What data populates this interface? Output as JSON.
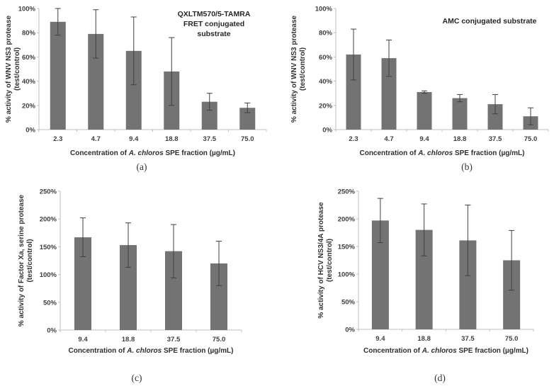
{
  "figure": {
    "background": "#ffffff",
    "panel_labels": [
      "(a)",
      "(b)",
      "(c)",
      "(d)"
    ]
  },
  "colors": {
    "bar": "#737373",
    "error_bar": "#404040",
    "axis_line": "#bfbfbf",
    "tick_text": "#3f3f3f"
  },
  "chart_data": [
    {
      "id": "a",
      "type": "bar",
      "panel_label": "(a)",
      "annotation_lines": [
        "QXLTM570/5-TAMRA",
        "FRET conjugated",
        "substrate"
      ],
      "ylabel": "% activity of WNV NS3 protease (test/control)",
      "ylabel_lines": [
        "% activity of WNV NS3 protease",
        "(test/control)"
      ],
      "xlabel": "Concentration of A. chloros SPE fraction (µg/mL)",
      "xlabel_parts": {
        "prefix": "Concentration of ",
        "italic": "A. chloros",
        "suffix": " SPE fraction (µg/mL)"
      },
      "categories": [
        "2.3",
        "4.7",
        "9.4",
        "18.8",
        "37.5",
        "75.0"
      ],
      "values": [
        89,
        79,
        65,
        48,
        23,
        18
      ],
      "errors": [
        11,
        20,
        28,
        28,
        7,
        4
      ],
      "ylim": [
        0,
        100
      ],
      "ytick_step": 20,
      "ytick_suffix": "%",
      "grid": false
    },
    {
      "id": "b",
      "type": "bar",
      "panel_label": "(b)",
      "annotation_lines": [
        "AMC conjugated substrate"
      ],
      "ylabel": "% activity of WNV NS3 protease (test/control)",
      "ylabel_lines": [
        "% activity of WNV NS3 protease",
        "(test/control)"
      ],
      "xlabel": "Concentration of A. chloros SPE fraction (µg/mL)",
      "xlabel_parts": {
        "prefix": "Concentration of ",
        "italic": "A. chloros",
        "suffix": " SPE fraction (µg/mL)"
      },
      "categories": [
        "2.3",
        "4.7",
        "9.4",
        "18.8",
        "37.5",
        "75.0"
      ],
      "values": [
        62,
        59,
        31,
        26,
        21,
        11
      ],
      "errors": [
        21,
        15,
        1,
        3,
        8,
        7
      ],
      "ylim": [
        0,
        100
      ],
      "ytick_step": 20,
      "ytick_suffix": "%",
      "grid": false
    },
    {
      "id": "c",
      "type": "bar",
      "panel_label": "(c)",
      "annotation_lines": [],
      "ylabel": "% activity of Factor Xa, serine protease (test/control)",
      "ylabel_lines": [
        "% activity of Factor Xa, serine protease",
        "(test/control)"
      ],
      "xlabel": "Concentration of A. chloros SPE fraction (µg/mL)",
      "xlabel_parts": {
        "prefix": "Concentration of ",
        "italic": "A. chloros",
        "suffix": " SPE fraction (µg/mL)"
      },
      "categories": [
        "9.4",
        "18.8",
        "37.5",
        "75.0"
      ],
      "values": [
        167,
        153,
        142,
        120
      ],
      "errors": [
        35,
        40,
        48,
        40
      ],
      "ylim": [
        0,
        250
      ],
      "ytick_step": 50,
      "ytick_suffix": "%",
      "grid": false
    },
    {
      "id": "d",
      "type": "bar",
      "panel_label": "(d)",
      "annotation_lines": [],
      "ylabel": "% activity of HCV NS3/4A protease (test/control)",
      "ylabel_lines": [
        "% activity of HCV NS3/4A protease",
        "(test/control)"
      ],
      "xlabel": "Concentration of A. chloros SPE fraction (µg/mL)",
      "xlabel_parts": {
        "prefix": "Concentration of ",
        "italic": "A. chloros",
        "suffix": " SPE fraction (µg/mL)"
      },
      "categories": [
        "9.4",
        "18.8",
        "37.5",
        "75.0"
      ],
      "values": [
        197,
        180,
        161,
        125
      ],
      "errors": [
        40,
        47,
        64,
        54
      ],
      "ylim": [
        0,
        250
      ],
      "ytick_step": 50,
      "ytick_suffix": "%",
      "grid": false
    }
  ]
}
